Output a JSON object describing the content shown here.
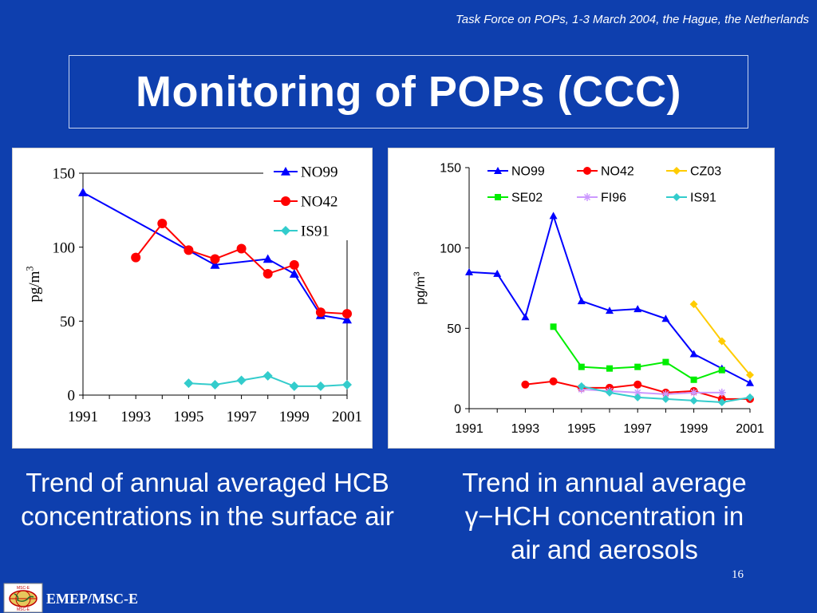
{
  "header_note": "Task Force on POPs, 1-3 March 2004, the Hague, the Netherlands",
  "title": "Monitoring of POPs (CCC)",
  "captions": {
    "left": "Trend of annual averaged HCB concentrations in the surface air",
    "right_line1": "Trend in annual average",
    "right_line2": "γ−HCH  concentration in",
    "right_line3": "air and aerosols"
  },
  "page_number": "16",
  "footer": {
    "org": "EMEP/MSC-E",
    "logo_top": "MSC-E",
    "logo_bottom": "MSC-E"
  },
  "colors": {
    "background": "#0e3fae",
    "NO99": "#0000ff",
    "NO42": "#ff0000",
    "IS91": "#33cccc",
    "CZ03": "#ffcc00",
    "SE02": "#00ee00",
    "FI96": "#cc99ff"
  },
  "chart_data": [
    {
      "type": "line",
      "title": "",
      "xlabel": "",
      "ylabel": "pg/m3",
      "ylim": [
        0,
        150
      ],
      "yticks": [
        0,
        50,
        100,
        150
      ],
      "xlim": [
        1991,
        2001
      ],
      "xticks": [
        1991,
        1993,
        1995,
        1997,
        1999,
        2001
      ],
      "legend": "top-right",
      "grid": false,
      "series": [
        {
          "name": "NO99",
          "marker": "triangle",
          "points": [
            [
              1991,
              137
            ],
            [
              1996,
              88
            ],
            [
              1998,
              92
            ],
            [
              1999,
              82
            ],
            [
              2000,
              54
            ],
            [
              2001,
              51
            ]
          ]
        },
        {
          "name": "NO42",
          "marker": "circle",
          "points": [
            [
              1993,
              93
            ],
            [
              1994,
              116
            ],
            [
              1995,
              98
            ],
            [
              1996,
              92
            ],
            [
              1997,
              99
            ],
            [
              1998,
              82
            ],
            [
              1999,
              88
            ],
            [
              2000,
              56
            ],
            [
              2001,
              55
            ]
          ]
        },
        {
          "name": "IS91",
          "marker": "diamond",
          "points": [
            [
              1995,
              8
            ],
            [
              1996,
              7
            ],
            [
              1997,
              10
            ],
            [
              1998,
              13
            ],
            [
              1999,
              6
            ],
            [
              2000,
              6
            ],
            [
              2001,
              7
            ]
          ]
        }
      ]
    },
    {
      "type": "line",
      "title": "",
      "xlabel": "",
      "ylabel": "pg/m3",
      "ylim": [
        0,
        150
      ],
      "yticks": [
        0,
        50,
        100,
        150
      ],
      "xlim": [
        1991,
        2001
      ],
      "xticks": [
        1991,
        1993,
        1995,
        1997,
        1999,
        2001
      ],
      "legend": "top",
      "grid": false,
      "series": [
        {
          "name": "NO99",
          "marker": "triangle",
          "points": [
            [
              1991,
              85
            ],
            [
              1992,
              84
            ],
            [
              1993,
              57
            ],
            [
              1994,
              120
            ],
            [
              1995,
              67
            ],
            [
              1996,
              61
            ],
            [
              1997,
              62
            ],
            [
              1998,
              56
            ],
            [
              1999,
              34
            ],
            [
              2000,
              25
            ],
            [
              2001,
              16
            ]
          ]
        },
        {
          "name": "NO42",
          "marker": "circle",
          "points": [
            [
              1993,
              15
            ],
            [
              1994,
              17
            ],
            [
              1995,
              13
            ],
            [
              1996,
              13
            ],
            [
              1997,
              15
            ],
            [
              1998,
              10
            ],
            [
              1999,
              11
            ],
            [
              2000,
              6
            ],
            [
              2001,
              6
            ]
          ]
        },
        {
          "name": "CZ03",
          "marker": "diamond",
          "points": [
            [
              1999,
              65
            ],
            [
              2000,
              42
            ],
            [
              2001,
              21
            ]
          ]
        },
        {
          "name": "SE02",
          "marker": "square",
          "points": [
            [
              1994,
              51
            ],
            [
              1995,
              26
            ],
            [
              1996,
              25
            ],
            [
              1997,
              26
            ],
            [
              1998,
              29
            ],
            [
              1999,
              18
            ],
            [
              2000,
              24
            ]
          ]
        },
        {
          "name": "FI96",
          "marker": "star",
          "points": [
            [
              1995,
              12
            ],
            [
              1996,
              11
            ],
            [
              1997,
              10
            ],
            [
              1998,
              9
            ],
            [
              1999,
              10
            ],
            [
              2000,
              10
            ]
          ]
        },
        {
          "name": "IS91",
          "marker": "diamond",
          "points": [
            [
              1995,
              14
            ],
            [
              1996,
              10
            ],
            [
              1997,
              7
            ],
            [
              1998,
              6
            ],
            [
              1999,
              5
            ],
            [
              2000,
              4
            ],
            [
              2001,
              7
            ]
          ]
        }
      ]
    }
  ]
}
